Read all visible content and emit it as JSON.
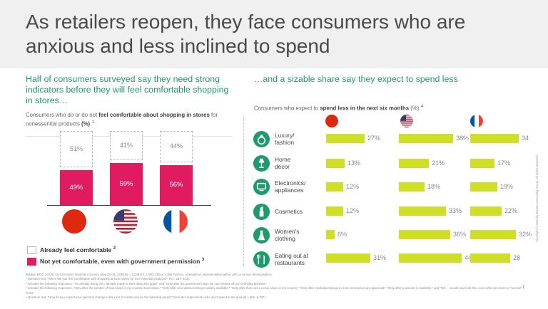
{
  "title": "As retailers reopen, they face consumers who are anxious and less inclined to spend",
  "left": {
    "headline": "Half of consumers surveyed say they need strong indicators before they will feel comfortable shopping in stores…",
    "subtitle_pre": "Consumers who do or do not ",
    "subtitle_bold": "feel comfortable about shopping in stores",
    "subtitle_post": " for nonessential products ",
    "subtitle_unit": "(%)",
    "subtitle_note": "1",
    "legend": {
      "comfortable": "Already feel comfortable",
      "comfortable_note": "2",
      "not_comfortable": "Not yet comfortable, even with government permission",
      "not_comfortable_note": "3"
    }
  },
  "right": {
    "headline": "…and a sizable share say they expect to spend less",
    "subtitle_pre": "Consumers who expect to ",
    "subtitle_bold": "spend less in the next six months",
    "subtitle_post": " (%) ",
    "subtitle_note": "4"
  },
  "icons": {
    "countries": [
      "china-flag-icon",
      "usa-flag-icon",
      "france-flag-icon"
    ],
    "categories": [
      "diamond-ring-icon",
      "lamp-icon",
      "tv-icon",
      "lipstick-icon",
      "dress-icon",
      "restaurant-icon"
    ]
  },
  "colors": {
    "accent_green": "#1f9a6c",
    "not_comfortable": "#e01b5f",
    "spend_less_bar": "#cfdf27",
    "header_bg": "#f0f0f0"
  },
  "chart_data": [
    {
      "type": "bar",
      "stacked": true,
      "categories": [
        "China",
        "US",
        "France"
      ],
      "series": [
        {
          "name": "Not yet comfortable, even with government permission",
          "values": [
            49,
            59,
            56
          ],
          "labels": [
            "49%",
            "59%",
            "56%"
          ]
        },
        {
          "name": "Already feel comfortable",
          "values": [
            51,
            41,
            44
          ],
          "labels": [
            "51%",
            "41%",
            "44%"
          ]
        }
      ],
      "ylim": [
        0,
        100
      ]
    },
    {
      "type": "bar",
      "orientation": "horizontal",
      "categories": [
        "Luxury/ fashion",
        "Home décor",
        "Electronics/ appliances",
        "Cosmetics",
        "Women's clothing",
        "Eating out at restaurants"
      ],
      "series": [
        {
          "name": "China",
          "values": [
            27,
            13,
            12,
            12,
            6,
            31
          ],
          "labels": [
            "27%",
            "13%",
            "12%",
            "12%",
            "6%",
            "31%"
          ]
        },
        {
          "name": "US",
          "values": [
            38,
            21,
            18,
            33,
            36,
            44
          ],
          "labels": [
            "38%",
            "21%",
            "18%",
            "33%",
            "36%",
            "44%"
          ]
        },
        {
          "name": "France",
          "values": [
            34,
            17,
            19,
            22,
            32,
            28
          ],
          "labels": [
            "34",
            "17%",
            "19%",
            "22%",
            "32%",
            "28"
          ]
        }
      ],
      "xlim": [
        0,
        44
      ]
    }
  ],
  "footnotes": {
    "source_label": "Source:",
    "source": "BCG COVID-19 Consumer Sentiment Survey, May 22–31, 2020 (N = 3,238 US, 1,903 China, 2,386 France), unweighted, representative within ±3% of census demographics.",
    "notes": [
      "¹ Question text: \"When will you feel comfortable with shopping at local stores for non-essential products?\" (N = 287–243).",
      "² Includes the following responses: \"I'm already doing this / already ready to start doing this again\" and \"Only after the government says we can resume all our everyday activities\"",
      "³ Includes the following responses: \"Only after the number of new cases in my country slows down,\" \"Only after coronavirus testing is widely available,\" \"Only after there are no new cases in my country,\" \"Only after medication/drugs to treat coronavirus are approved,\" \"Only after a vaccine is available,\" and \"N/A - I would never do this, even after we return to \"normal\" times\"",
      "⁴ Question text: \"How do you expect your spend to change in the next 6 months across the following areas?\" Excludes respondents who don't spend in the area (N = 681–1,797)."
    ],
    "page_number": "1",
    "copyright": "Copyright © 2020 by Boston Consulting Group. All rights reserved."
  }
}
